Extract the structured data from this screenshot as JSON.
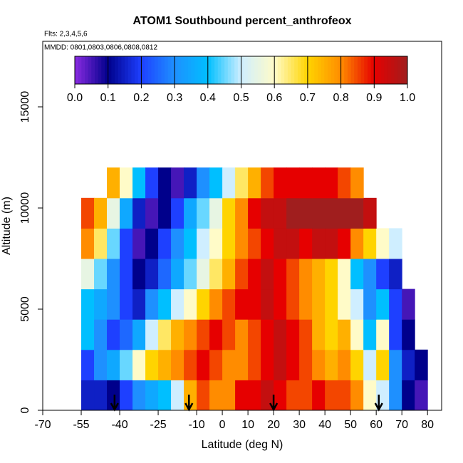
{
  "chart_data": {
    "type": "heatmap",
    "title": "ATOM1 Southbound percent_anthrofeox",
    "subtitle": "Flts: 2,3,4,5,6",
    "annotation": "MMDD: 0801,0803,0806,0808,0812",
    "x_label": "Latitude (deg N)",
    "y_label": "Altitude (m)",
    "xlim": [
      -70,
      85.5
    ],
    "ylim": [
      0,
      18240
    ],
    "xticks": [
      -70,
      -55,
      -40,
      -25,
      -10,
      0,
      10,
      20,
      30,
      40,
      50,
      60,
      70,
      80
    ],
    "yticks": [
      0,
      5000,
      10000,
      15000
    ],
    "x_edges": [
      -55,
      -50,
      -45,
      -40,
      -35,
      -30,
      -25,
      -20,
      -15,
      -10,
      -5,
      0,
      5,
      10,
      15,
      20,
      25,
      30,
      35,
      40,
      45,
      50,
      55,
      60,
      65,
      70,
      75,
      80
    ],
    "y_edges": [
      0,
      1500,
      3000,
      4500,
      6000,
      7500,
      9000,
      10500,
      12000
    ],
    "z": [
      [
        0.15,
        0.15,
        0.1,
        0.2,
        0.3,
        0.35,
        0.4,
        0.5,
        0.75,
        0.85,
        0.8,
        0.8,
        0.9,
        0.9,
        0.95,
        0.9,
        0.85,
        0.85,
        0.9,
        0.85,
        0.85,
        0.8,
        0.6,
        0.5,
        0.3,
        0.1,
        0.05
      ],
      [
        0.2,
        0.3,
        0.35,
        0.45,
        0.6,
        0.7,
        0.75,
        0.8,
        0.85,
        0.9,
        0.85,
        0.8,
        0.8,
        0.85,
        0.9,
        0.95,
        0.9,
        0.85,
        0.8,
        0.75,
        0.8,
        0.7,
        0.5,
        0.7,
        0.3,
        0.15,
        0.1
      ],
      [
        0.4,
        0.3,
        0.2,
        0.25,
        0.35,
        0.5,
        0.65,
        0.75,
        0.8,
        0.85,
        0.9,
        0.85,
        0.8,
        0.85,
        0.9,
        0.95,
        0.9,
        0.85,
        0.75,
        0.7,
        0.75,
        0.6,
        0.4,
        0.6,
        0.2,
        0.1,
        null
      ],
      [
        0.4,
        0.35,
        0.3,
        0.2,
        0.15,
        0.3,
        0.4,
        0.5,
        0.6,
        0.7,
        0.8,
        0.85,
        0.9,
        0.9,
        0.95,
        0.9,
        0.85,
        0.8,
        0.75,
        0.7,
        0.6,
        0.5,
        0.3,
        0.4,
        0.2,
        0.05,
        null
      ],
      [
        0.55,
        0.45,
        0.3,
        0.2,
        0.1,
        0.15,
        0.25,
        0.35,
        0.45,
        0.55,
        0.65,
        0.75,
        0.85,
        0.9,
        0.95,
        0.9,
        0.85,
        0.8,
        0.75,
        0.7,
        0.6,
        0.4,
        0.3,
        0.2,
        0.15,
        null,
        null
      ],
      [
        0.8,
        0.65,
        0.45,
        0.2,
        0.05,
        0.1,
        0.2,
        0.3,
        0.4,
        0.5,
        0.6,
        0.7,
        0.8,
        0.85,
        0.9,
        0.95,
        0.95,
        0.9,
        0.95,
        0.95,
        0.9,
        0.8,
        0.7,
        0.6,
        0.5,
        null,
        null
      ],
      [
        0.85,
        0.75,
        0.55,
        0.35,
        0.15,
        0.05,
        0.1,
        0.2,
        0.35,
        0.45,
        0.55,
        0.7,
        0.8,
        0.9,
        0.95,
        0.95,
        1.0,
        1.0,
        1.0,
        1.0,
        1.0,
        1.0,
        0.95,
        null,
        null,
        null,
        null
      ],
      [
        null,
        null,
        0.75,
        0.6,
        0.4,
        0.2,
        0.1,
        0.05,
        0.15,
        0.3,
        0.4,
        0.5,
        0.65,
        0.75,
        0.85,
        0.9,
        0.9,
        0.9,
        0.9,
        0.9,
        0.85,
        0.8,
        null,
        null,
        null,
        null,
        null
      ]
    ],
    "clim": [
      0,
      1
    ],
    "cticks": [
      {
        "value": 0,
        "label": "0.0"
      },
      {
        "value": 0.1,
        "label": "0.1"
      },
      {
        "value": 0.2,
        "label": "0.2"
      },
      {
        "value": 0.3,
        "label": "0.3"
      },
      {
        "value": 0.4,
        "label": "0.4"
      },
      {
        "value": 0.5,
        "label": "0.5"
      },
      {
        "value": 0.6,
        "label": "0.6"
      },
      {
        "value": 0.7,
        "label": "0.7"
      },
      {
        "value": 0.8,
        "label": "0.8"
      },
      {
        "value": 0.9,
        "label": "0.9"
      },
      {
        "value": 1,
        "label": "1.0"
      }
    ],
    "colors": [
      "#8a2be2",
      "#00008b",
      "#1e40ff",
      "#1e90ff",
      "#00bfff",
      "#cfeeff",
      "#fffbc8",
      "#ffd400",
      "#ff8c00",
      "#e60000",
      "#a01e1e"
    ],
    "arrow_lats": [
      -42,
      -13,
      20,
      61
    ]
  }
}
